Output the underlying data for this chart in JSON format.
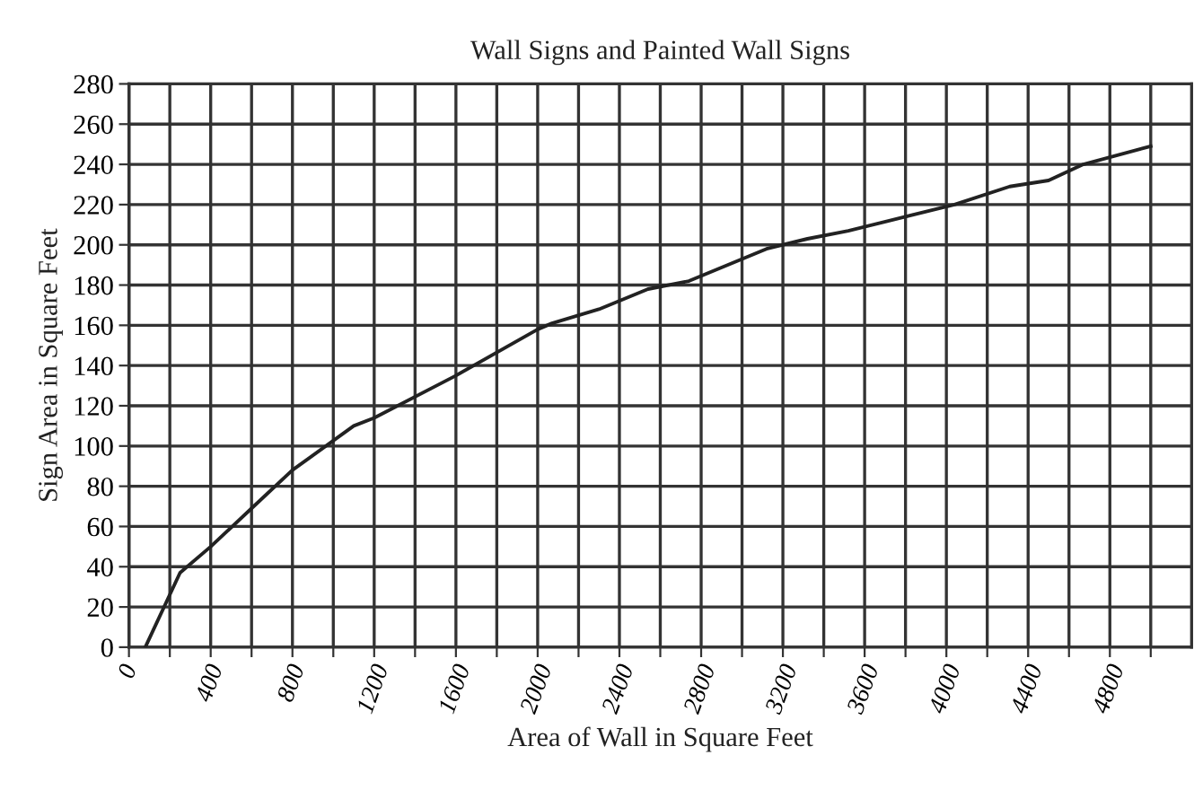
{
  "chart_data": {
    "type": "line",
    "title": "Wall Signs and Painted Wall Signs",
    "xlabel": "Area of Wall in Square Feet",
    "ylabel": "Sign Area in Square Feet",
    "series": [
      {
        "color": "#222222",
        "x": [
          80,
          250,
          400,
          600,
          800,
          1100,
          1200,
          1600,
          2000,
          2070,
          2300,
          2540,
          2740,
          3120,
          3320,
          3520,
          3720,
          4040,
          4310,
          4500,
          4670,
          5000
        ],
        "values": [
          0,
          37,
          50,
          69,
          88,
          110,
          114,
          135,
          158,
          161,
          168,
          178,
          182,
          198,
          203,
          207,
          212,
          220,
          229,
          232,
          240,
          249
        ]
      }
    ],
    "xlim": [
      0,
      5200
    ],
    "ylim": [
      0,
      280
    ],
    "xticks": [
      0,
      {
        "value": 200,
        "label": null
      },
      400,
      {
        "value": 600,
        "label": null
      },
      800,
      {
        "value": 1000,
        "label": null
      },
      1200,
      {
        "value": 1400,
        "label": null
      },
      1600,
      {
        "value": 1800,
        "label": null
      },
      2000,
      {
        "value": 2200,
        "label": null
      },
      2400,
      {
        "value": 2600,
        "label": null
      },
      2800,
      {
        "value": 3000,
        "label": null
      },
      3200,
      {
        "value": 3400,
        "label": null
      },
      3600,
      {
        "value": 3800,
        "label": null
      },
      4000,
      {
        "value": 4200,
        "label": null
      },
      4400,
      {
        "value": 4600,
        "label": null
      },
      4800,
      {
        "value": 5000,
        "label": null
      }
    ],
    "yticks": [
      0,
      20,
      40,
      60,
      80,
      100,
      120,
      140,
      160,
      180,
      200,
      220,
      240,
      260,
      280
    ],
    "grid": true,
    "marker": "none",
    "line_style": "solid"
  }
}
